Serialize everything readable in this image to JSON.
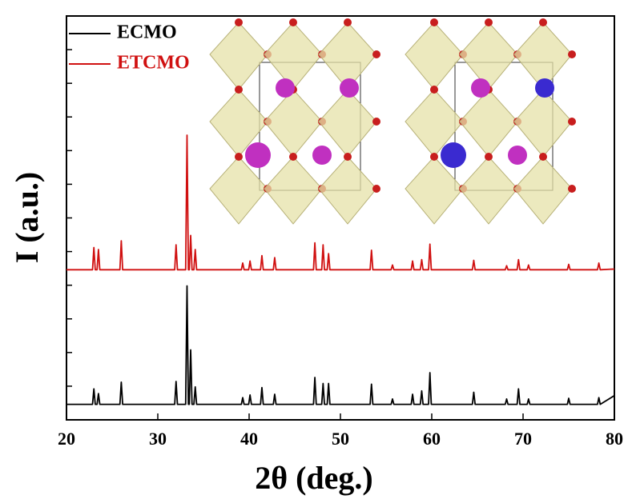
{
  "chart_data": {
    "type": "line",
    "xlabel": "2θ (deg.)",
    "ylabel": "I (a.u.)",
    "x": [
      20,
      22.85,
      23.0,
      23.15,
      23.35,
      23.5,
      23.65,
      25.85,
      26.0,
      26.15,
      31.85,
      32.0,
      32.15,
      33.05,
      33.2,
      33.35,
      33.45,
      33.6,
      33.75,
      33.95,
      34.1,
      34.25,
      39.15,
      39.3,
      39.45,
      39.95,
      40.1,
      40.25,
      41.25,
      41.4,
      41.55,
      42.65,
      42.8,
      42.95,
      47.05,
      47.2,
      47.35,
      47.95,
      48.1,
      48.25,
      48.55,
      48.7,
      48.85,
      53.25,
      53.4,
      53.55,
      55.55,
      55.7,
      55.85,
      57.75,
      57.9,
      58.05,
      58.75,
      58.9,
      59.05,
      59.65,
      59.8,
      59.95,
      64.45,
      64.6,
      64.75,
      68.05,
      68.2,
      68.35,
      69.35,
      69.5,
      69.65,
      70.45,
      70.6,
      70.75,
      74.85,
      75.0,
      75.15,
      78.15,
      78.3,
      78.45,
      80
    ],
    "series": [
      {
        "name": "ECMO",
        "color": "#000000",
        "values": [
          0.23,
          0.23,
          0.46,
          0.23,
          0.23,
          0.39,
          0.23,
          0.23,
          0.56,
          0.23,
          0.23,
          0.57,
          0.23,
          0.23,
          1.99,
          0.23,
          0.23,
          1.04,
          0.23,
          0.23,
          0.49,
          0.23,
          0.23,
          0.33,
          0.23,
          0.23,
          0.37,
          0.23,
          0.23,
          0.48,
          0.23,
          0.23,
          0.38,
          0.23,
          0.23,
          0.63,
          0.23,
          0.23,
          0.54,
          0.23,
          0.23,
          0.54,
          0.23,
          0.23,
          0.53,
          0.23,
          0.23,
          0.31,
          0.23,
          0.23,
          0.38,
          0.23,
          0.23,
          0.43,
          0.23,
          0.23,
          0.7,
          0.23,
          0.23,
          0.41,
          0.23,
          0.23,
          0.31,
          0.23,
          0.23,
          0.46,
          0.23,
          0.23,
          0.31,
          0.23,
          0.23,
          0.32,
          0.23,
          0.23,
          0.33,
          0.23,
          0.36
        ]
      },
      {
        "name": "ETCMO",
        "color": "#d01010",
        "values": [
          2.23,
          2.23,
          2.56,
          2.23,
          2.23,
          2.53,
          2.23,
          2.23,
          2.66,
          2.23,
          2.23,
          2.6,
          2.23,
          2.23,
          4.23,
          2.23,
          2.23,
          2.74,
          2.23,
          2.23,
          2.53,
          2.23,
          2.23,
          2.33,
          2.23,
          2.23,
          2.36,
          2.23,
          2.23,
          2.44,
          2.23,
          2.23,
          2.41,
          2.23,
          2.23,
          2.63,
          2.23,
          2.23,
          2.6,
          2.23,
          2.23,
          2.47,
          2.23,
          2.23,
          2.52,
          2.23,
          2.23,
          2.3,
          2.23,
          2.23,
          2.36,
          2.23,
          2.23,
          2.38,
          2.23,
          2.23,
          2.61,
          2.23,
          2.23,
          2.37,
          2.23,
          2.23,
          2.29,
          2.23,
          2.23,
          2.38,
          2.23,
          2.23,
          2.3,
          2.23,
          2.23,
          2.31,
          2.23,
          2.23,
          2.33,
          2.23,
          2.24
        ]
      }
    ],
    "xlim": [
      20,
      80
    ],
    "xticks": [
      20,
      30,
      40,
      50,
      60,
      70,
      80
    ],
    "ylim": [
      0,
      6
    ],
    "yticks": [
      0,
      0.5,
      1,
      1.5,
      2,
      2.5,
      3,
      3.5,
      4,
      4.5,
      5,
      5.5,
      6
    ],
    "ytick_labels": false,
    "grid": false,
    "legend": "upper left"
  }
}
